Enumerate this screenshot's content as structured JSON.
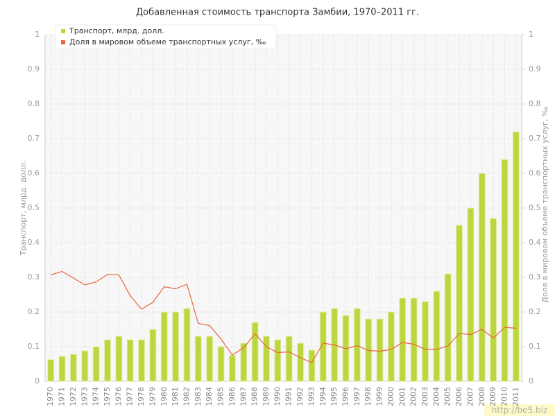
{
  "chart_data": {
    "type": "bar_line",
    "title": "Добавленная стоимость транспорта Замбии, 1970–2011 гг.",
    "ylabel": "Транспорт, млрд. долл.",
    "y2label": "Доля в мировом объеме транспортных услуг, ‰",
    "watermark": "http://be5.biz",
    "categories": [
      "1970",
      "1971",
      "1972",
      "1973",
      "1974",
      "1975",
      "1976",
      "1977",
      "1978",
      "1979",
      "1980",
      "1981",
      "1982",
      "1983",
      "1984",
      "1985",
      "1986",
      "1987",
      "1988",
      "1989",
      "1990",
      "1991",
      "1992",
      "1993",
      "1994",
      "1995",
      "1996",
      "1997",
      "1998",
      "1999",
      "2000",
      "2001",
      "2002",
      "2003",
      "2004",
      "2005",
      "2006",
      "2007",
      "2008",
      "2009",
      "2010",
      "2011"
    ],
    "series": [
      {
        "name": "Транспорт, млрд. долл.",
        "color": "#bcd63f",
        "kind": "bar",
        "values": [
          0.063,
          0.072,
          0.078,
          0.088,
          0.1,
          0.12,
          0.13,
          0.12,
          0.12,
          0.15,
          0.2,
          0.2,
          0.21,
          0.13,
          0.13,
          0.1,
          0.075,
          0.11,
          0.17,
          0.13,
          0.12,
          0.13,
          0.11,
          0.09,
          0.2,
          0.21,
          0.19,
          0.21,
          0.18,
          0.18,
          0.2,
          0.24,
          0.24,
          0.23,
          0.26,
          0.31,
          0.45,
          0.5,
          0.6,
          0.47,
          0.64,
          0.72
        ]
      },
      {
        "name": "Доля в мировом объеме транспортных услуг, ‰",
        "color": "#e8643c",
        "kind": "line",
        "axis": "y2",
        "values": [
          0.307,
          0.317,
          0.298,
          0.278,
          0.287,
          0.308,
          0.307,
          0.247,
          0.208,
          0.228,
          0.273,
          0.267,
          0.28,
          0.167,
          0.161,
          0.122,
          0.076,
          0.097,
          0.137,
          0.1,
          0.083,
          0.085,
          0.068,
          0.054,
          0.11,
          0.105,
          0.094,
          0.103,
          0.089,
          0.087,
          0.092,
          0.112,
          0.107,
          0.092,
          0.092,
          0.102,
          0.138,
          0.135,
          0.15,
          0.125,
          0.156,
          0.153
        ]
      }
    ],
    "ylim": [
      0,
      1
    ],
    "yticks": [
      0,
      0.1,
      0.2,
      0.3,
      0.4,
      0.5,
      0.6,
      0.7,
      0.8,
      0.9,
      1
    ],
    "y2lim": [
      0,
      1
    ],
    "y2ticks": [
      0,
      0.1,
      0.2,
      0.3,
      0.4,
      0.5,
      0.6,
      0.7,
      0.8,
      0.9,
      1
    ],
    "grid": true,
    "legend": "top-left"
  }
}
